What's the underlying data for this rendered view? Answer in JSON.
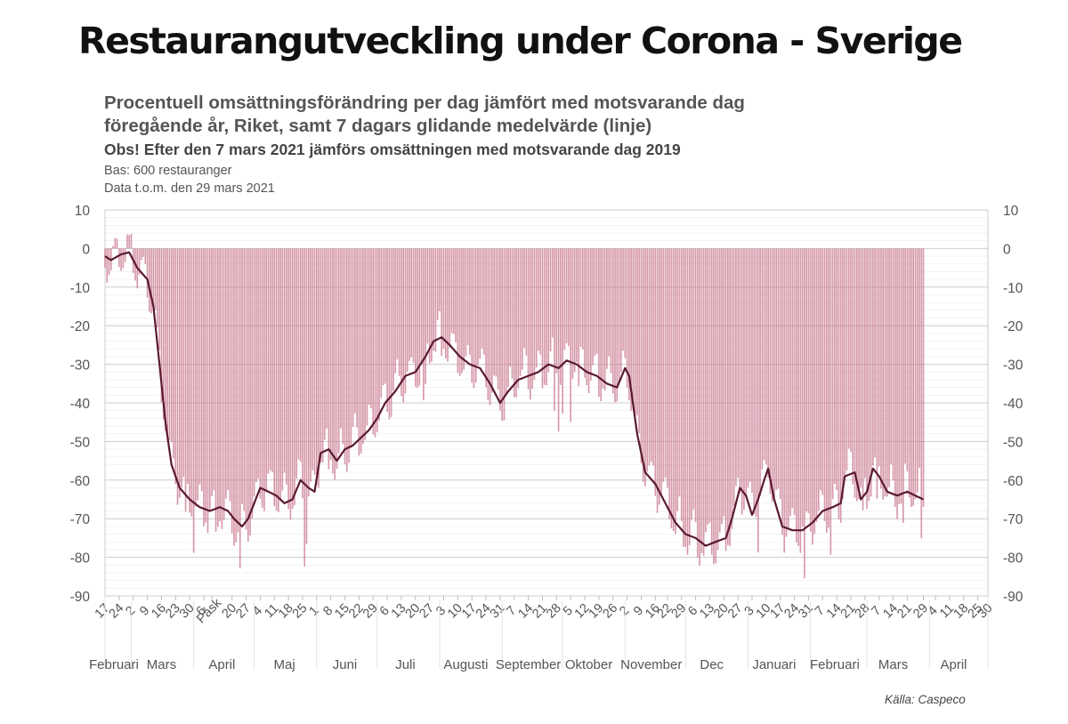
{
  "header": {
    "title": "Restaurangutveckling under Corona - Sverige",
    "subtitle_line1": "Procentuell omsättningsförändring per dag jämfört med motsvarande dag",
    "subtitle_line2": "föregående år, Riket, samt 7 dagars glidande medelvärde (linje)",
    "note": "Obs! Efter den 7 mars 2021 jämförs omsättningen med motsvarande dag 2019",
    "base": "Bas: 600 restauranger",
    "data_through": "Data t.o.m. den 29 mars 2021"
  },
  "source": "Källa: Caspeco",
  "colors": {
    "bars": "#c8758c",
    "line": "#5a1a30",
    "grid": "#d9d9d9",
    "axis_text": "#555555"
  },
  "chart_data": {
    "type": "bar",
    "title": "Procentuell omsättningsförändring per dag jämfört med motsvarande dag föregående år, Riket, samt 7 dagars glidande medelvärde (linje)",
    "x_start": "2020-02-17",
    "x_end": "2021-04-30",
    "data_end": "2021-03-29",
    "ylim": [
      -90,
      10
    ],
    "yticks": [
      10,
      0,
      -10,
      -20,
      -30,
      -40,
      -50,
      -60,
      -70,
      -80,
      -90
    ],
    "grid": true,
    "secondary_y_axis": true,
    "series": [
      {
        "type": "bar",
        "description": "daily change"
      },
      {
        "type": "line",
        "description": "7-day moving average",
        "points": [
          [
            "2020-02-17",
            -2
          ],
          [
            "2020-02-20",
            -3
          ],
          [
            "2020-02-25",
            -1.5
          ],
          [
            "2020-02-29",
            -1
          ],
          [
            "2020-03-04",
            -5
          ],
          [
            "2020-03-09",
            -8
          ],
          [
            "2020-03-12",
            -15
          ],
          [
            "2020-03-15",
            -30
          ],
          [
            "2020-03-18",
            -45
          ],
          [
            "2020-03-21",
            -56
          ],
          [
            "2020-03-25",
            -62
          ],
          [
            "2020-03-30",
            -65
          ],
          [
            "2020-04-04",
            -67
          ],
          [
            "2020-04-09",
            -68
          ],
          [
            "2020-04-14",
            -67
          ],
          [
            "2020-04-18",
            -68
          ],
          [
            "2020-04-21",
            -70
          ],
          [
            "2020-04-25",
            -72
          ],
          [
            "2020-04-28",
            -70
          ],
          [
            "2020-05-01",
            -66
          ],
          [
            "2020-05-04",
            -62
          ],
          [
            "2020-05-08",
            -63
          ],
          [
            "2020-05-12",
            -64
          ],
          [
            "2020-05-16",
            -66
          ],
          [
            "2020-05-20",
            -65
          ],
          [
            "2020-05-24",
            -60
          ],
          [
            "2020-05-28",
            -62
          ],
          [
            "2020-05-31",
            -63
          ],
          [
            "2020-06-03",
            -53
          ],
          [
            "2020-06-07",
            -52
          ],
          [
            "2020-06-11",
            -55
          ],
          [
            "2020-06-15",
            -52
          ],
          [
            "2020-06-19",
            -51
          ],
          [
            "2020-06-23",
            -49
          ],
          [
            "2020-06-27",
            -47
          ],
          [
            "2020-07-01",
            -44
          ],
          [
            "2020-07-05",
            -40
          ],
          [
            "2020-07-10",
            -37
          ],
          [
            "2020-07-15",
            -33
          ],
          [
            "2020-07-20",
            -32
          ],
          [
            "2020-07-25",
            -28
          ],
          [
            "2020-07-29",
            -24
          ],
          [
            "2020-08-02",
            -23
          ],
          [
            "2020-08-06",
            -25
          ],
          [
            "2020-08-11",
            -28
          ],
          [
            "2020-08-16",
            -30
          ],
          [
            "2020-08-21",
            -31
          ],
          [
            "2020-08-26",
            -35
          ],
          [
            "2020-08-31",
            -40
          ],
          [
            "2020-09-04",
            -37
          ],
          [
            "2020-09-09",
            -34
          ],
          [
            "2020-09-14",
            -33
          ],
          [
            "2020-09-19",
            -32
          ],
          [
            "2020-09-24",
            -30
          ],
          [
            "2020-09-29",
            -31
          ],
          [
            "2020-10-03",
            -29
          ],
          [
            "2020-10-08",
            -30
          ],
          [
            "2020-10-13",
            -32
          ],
          [
            "2020-10-18",
            -33
          ],
          [
            "2020-10-23",
            -35
          ],
          [
            "2020-10-28",
            -36
          ],
          [
            "2020-11-01",
            -31
          ],
          [
            "2020-11-03",
            -33
          ],
          [
            "2020-11-07",
            -48
          ],
          [
            "2020-11-11",
            -58
          ],
          [
            "2020-11-16",
            -61
          ],
          [
            "2020-11-21",
            -66
          ],
          [
            "2020-11-26",
            -71
          ],
          [
            "2020-12-01",
            -74
          ],
          [
            "2020-12-06",
            -75
          ],
          [
            "2020-12-11",
            -77
          ],
          [
            "2020-12-16",
            -76
          ],
          [
            "2020-12-21",
            -75
          ],
          [
            "2020-12-24",
            -70
          ],
          [
            "2020-12-28",
            -62
          ],
          [
            "2020-12-31",
            -64
          ],
          [
            "2021-01-03",
            -69
          ],
          [
            "2021-01-06",
            -65
          ],
          [
            "2021-01-09",
            -60
          ],
          [
            "2021-01-11",
            -57
          ],
          [
            "2021-01-14",
            -65
          ],
          [
            "2021-01-18",
            -72
          ],
          [
            "2021-01-23",
            -73
          ],
          [
            "2021-01-28",
            -73
          ],
          [
            "2021-02-02",
            -71
          ],
          [
            "2021-02-07",
            -68
          ],
          [
            "2021-02-12",
            -67
          ],
          [
            "2021-02-16",
            -66
          ],
          [
            "2021-02-18",
            -59
          ],
          [
            "2021-02-23",
            -58
          ],
          [
            "2021-02-26",
            -65
          ],
          [
            "2021-03-01",
            -63
          ],
          [
            "2021-03-04",
            -57
          ],
          [
            "2021-03-07",
            -59
          ],
          [
            "2021-03-11",
            -63
          ],
          [
            "2021-03-16",
            -64
          ],
          [
            "2021-03-21",
            -63
          ],
          [
            "2021-03-25",
            -64
          ],
          [
            "2021-03-29",
            -65
          ]
        ]
      }
    ],
    "x_day_labels": [
      {
        "text": "17",
        "date": "2020-02-17"
      },
      {
        "text": "24",
        "date": "2020-02-24"
      },
      {
        "text": "2",
        "date": "2020-03-02"
      },
      {
        "text": "9",
        "date": "2020-03-09"
      },
      {
        "text": "16",
        "date": "2020-03-16"
      },
      {
        "text": "23",
        "date": "2020-03-23"
      },
      {
        "text": "30",
        "date": "2020-03-30"
      },
      {
        "text": "6",
        "date": "2020-04-06"
      },
      {
        "text": "Påsk",
        "date": "2020-04-10"
      },
      {
        "text": "20",
        "date": "2020-04-20"
      },
      {
        "text": "27",
        "date": "2020-04-27"
      },
      {
        "text": "4",
        "date": "2020-05-04"
      },
      {
        "text": "11",
        "date": "2020-05-11"
      },
      {
        "text": "18",
        "date": "2020-05-18"
      },
      {
        "text": "25",
        "date": "2020-05-25"
      },
      {
        "text": "1",
        "date": "2020-06-01"
      },
      {
        "text": "8",
        "date": "2020-06-08"
      },
      {
        "text": "15",
        "date": "2020-06-15"
      },
      {
        "text": "22",
        "date": "2020-06-22"
      },
      {
        "text": "29",
        "date": "2020-06-29"
      },
      {
        "text": "6",
        "date": "2020-07-06"
      },
      {
        "text": "13",
        "date": "2020-07-13"
      },
      {
        "text": "20",
        "date": "2020-07-20"
      },
      {
        "text": "27",
        "date": "2020-07-27"
      },
      {
        "text": "3",
        "date": "2020-08-03"
      },
      {
        "text": "10",
        "date": "2020-08-10"
      },
      {
        "text": "17",
        "date": "2020-08-17"
      },
      {
        "text": "24",
        "date": "2020-08-24"
      },
      {
        "text": "31",
        "date": "2020-08-31"
      },
      {
        "text": "7",
        "date": "2020-09-07"
      },
      {
        "text": "14",
        "date": "2020-09-14"
      },
      {
        "text": "21",
        "date": "2020-09-21"
      },
      {
        "text": "28",
        "date": "2020-09-28"
      },
      {
        "text": "5",
        "date": "2020-10-05"
      },
      {
        "text": "12",
        "date": "2020-10-12"
      },
      {
        "text": "19",
        "date": "2020-10-19"
      },
      {
        "text": "26",
        "date": "2020-10-26"
      },
      {
        "text": "2",
        "date": "2020-11-02"
      },
      {
        "text": "9",
        "date": "2020-11-09"
      },
      {
        "text": "16",
        "date": "2020-11-16"
      },
      {
        "text": "22",
        "date": "2020-11-22"
      },
      {
        "text": "29",
        "date": "2020-11-29"
      },
      {
        "text": "6",
        "date": "2020-12-06"
      },
      {
        "text": "13",
        "date": "2020-12-13"
      },
      {
        "text": "20",
        "date": "2020-12-20"
      },
      {
        "text": "27",
        "date": "2020-12-27"
      },
      {
        "text": "3",
        "date": "2021-01-03"
      },
      {
        "text": "10",
        "date": "2021-01-10"
      },
      {
        "text": "17",
        "date": "2021-01-17"
      },
      {
        "text": "24",
        "date": "2021-01-24"
      },
      {
        "text": "31",
        "date": "2021-01-31"
      },
      {
        "text": "7",
        "date": "2021-02-07"
      },
      {
        "text": "14",
        "date": "2021-02-14"
      },
      {
        "text": "21",
        "date": "2021-02-21"
      },
      {
        "text": "28",
        "date": "2021-02-28"
      },
      {
        "text": "7",
        "date": "2021-03-07"
      },
      {
        "text": "14",
        "date": "2021-03-14"
      },
      {
        "text": "21",
        "date": "2021-03-21"
      },
      {
        "text": "29",
        "date": "2021-03-29"
      },
      {
        "text": "4",
        "date": "2021-04-04"
      },
      {
        "text": "11",
        "date": "2021-04-11"
      },
      {
        "text": "18",
        "date": "2021-04-18"
      },
      {
        "text": "25",
        "date": "2021-04-25"
      },
      {
        "text": "30",
        "date": "2021-04-30"
      }
    ],
    "x_month_labels": [
      {
        "text": "Februari",
        "date": "2020-02-17"
      },
      {
        "text": "Mars",
        "date": "2020-03-16"
      },
      {
        "text": "April",
        "date": "2020-04-15"
      },
      {
        "text": "Maj",
        "date": "2020-05-16"
      },
      {
        "text": "Juni",
        "date": "2020-06-15"
      },
      {
        "text": "Juli",
        "date": "2020-07-15"
      },
      {
        "text": "Augusti",
        "date": "2020-08-14"
      },
      {
        "text": "September",
        "date": "2020-09-14"
      },
      {
        "text": "Oktober",
        "date": "2020-10-14"
      },
      {
        "text": "November",
        "date": "2020-11-14"
      },
      {
        "text": "Dec",
        "date": "2020-12-14"
      },
      {
        "text": "Januari",
        "date": "2021-01-14"
      },
      {
        "text": "Februari",
        "date": "2021-02-13"
      },
      {
        "text": "Mars",
        "date": "2021-03-14"
      },
      {
        "text": "April",
        "date": "2021-04-13"
      }
    ]
  }
}
